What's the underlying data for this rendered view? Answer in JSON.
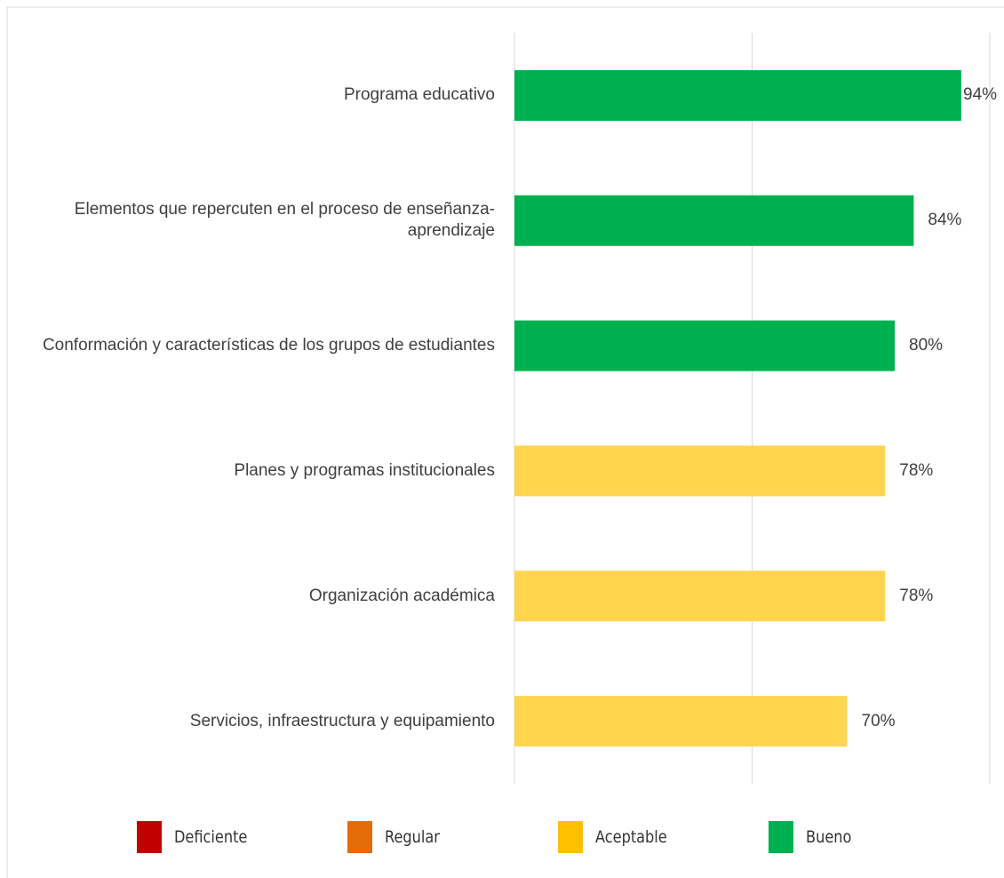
{
  "chart_data": {
    "type": "hbar",
    "categories": [
      "Programa educativo",
      "Elementos que repercuten en el proceso de enseñanza-aprendizaje",
      "Conformación y características de los grupos de estudiantes",
      "Planes y programas institucionales",
      "Organización académica",
      "Servicios, infraestructura y equipamiento"
    ],
    "values": [
      94,
      84,
      80,
      78,
      78,
      70
    ],
    "value_labels": [
      "94%",
      "84%",
      "80%",
      "78%",
      "78%",
      "70%"
    ],
    "colors": [
      "#00b050",
      "#00b050",
      "#00b050",
      "#ffd54f",
      "#ffd54f",
      "#ffd54f"
    ],
    "xlim": [
      0,
      100
    ],
    "xticks": [
      0,
      50,
      100
    ],
    "grid": true,
    "legend": [
      {
        "name": "Deficiente",
        "color": "#c00000"
      },
      {
        "name": "Regular",
        "color": "#e36c09"
      },
      {
        "name": "Aceptable",
        "color": "#ffc000"
      },
      {
        "name": "Bueno",
        "color": "#00b050"
      }
    ]
  }
}
